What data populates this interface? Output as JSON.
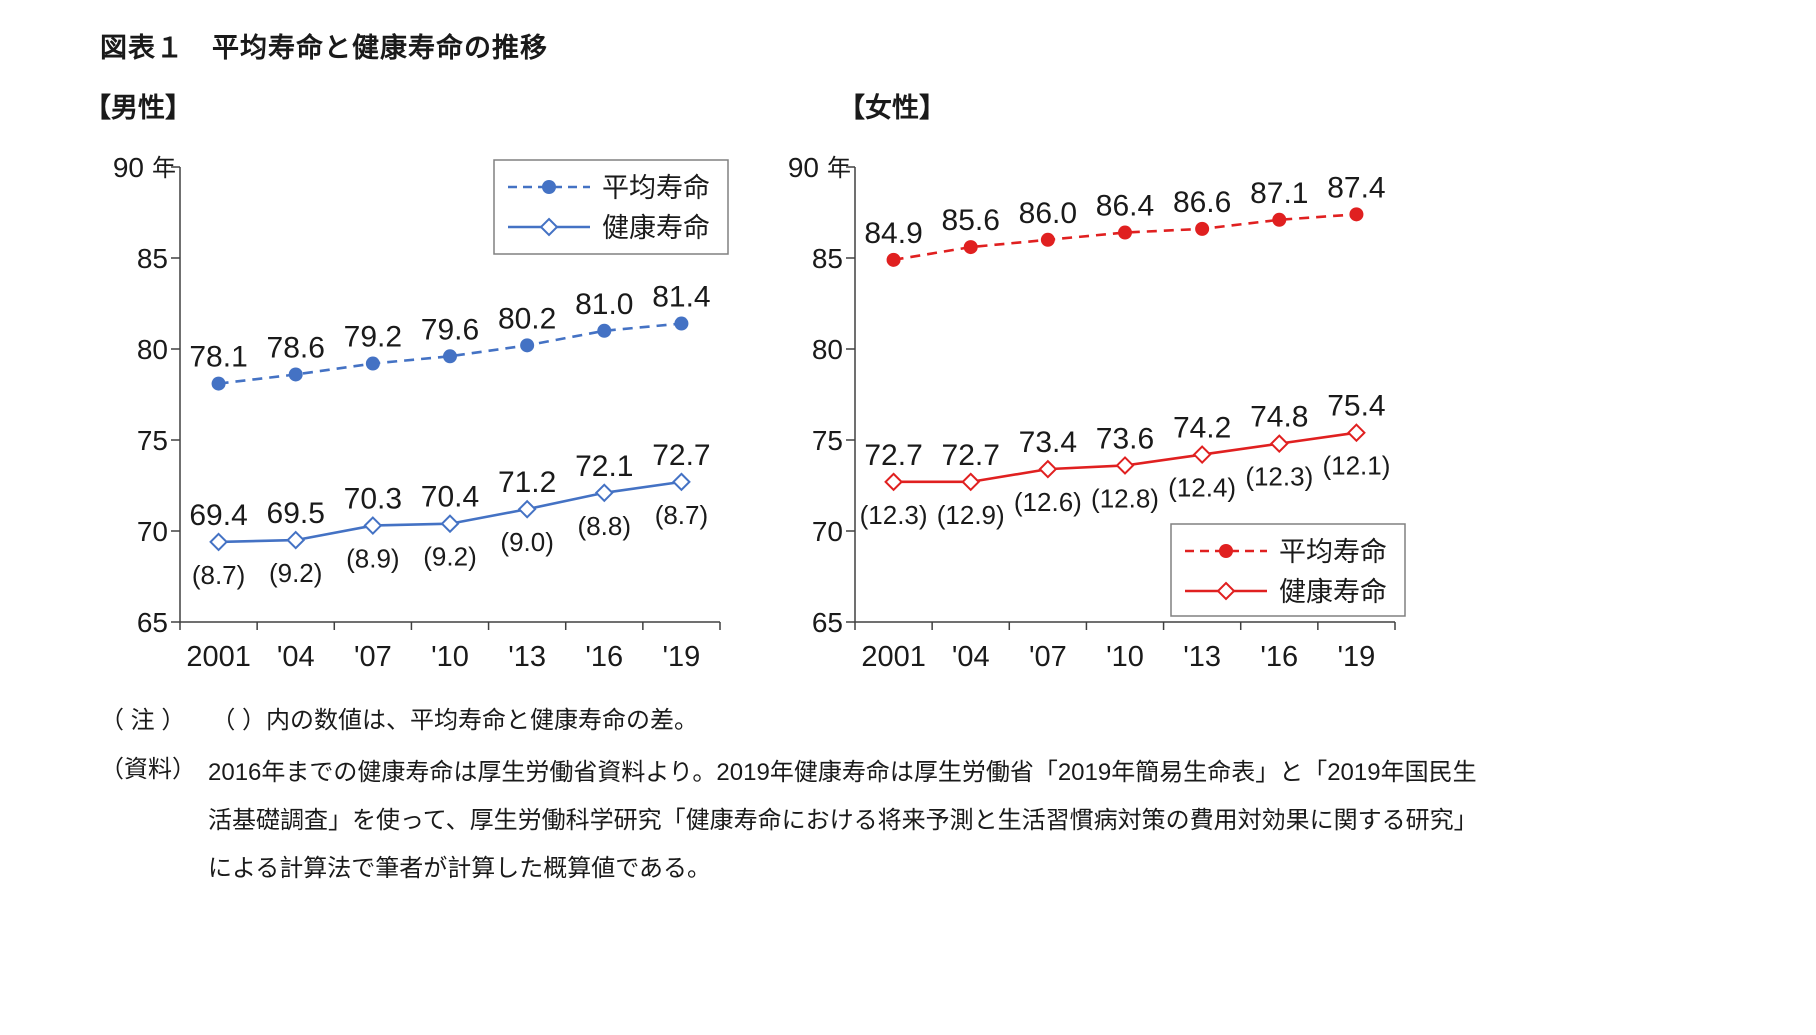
{
  "page": {
    "title": "図表１　平均寿命と健康寿命の推移"
  },
  "chart_data": [
    {
      "type": "line",
      "title": "【男性】",
      "categories": [
        "2001",
        "'04",
        "'07",
        "'10",
        "'13",
        "'16",
        "'19"
      ],
      "series": [
        {
          "name": "平均寿命",
          "values": [
            78.1,
            78.6,
            79.2,
            79.6,
            80.2,
            81.0,
            81.4
          ],
          "line_style": "dashed",
          "marker": "filled-circle",
          "color": "#4472c4"
        },
        {
          "name": "健康寿命",
          "values": [
            69.4,
            69.5,
            70.3,
            70.4,
            71.2,
            72.1,
            72.7
          ],
          "line_style": "solid",
          "marker": "open-diamond",
          "color": "#4472c4"
        }
      ],
      "gap_labels": [
        "(8.7)",
        "(9.2)",
        "(8.9)",
        "(9.2)",
        "(9.0)",
        "(8.8)",
        "(8.7)"
      ],
      "ylim": [
        65,
        90
      ],
      "yticks": [
        65,
        70,
        75,
        80,
        85,
        90
      ],
      "y_unit": "年",
      "grid": false,
      "legend_position": "top-right"
    },
    {
      "type": "line",
      "title": "【女性】",
      "categories": [
        "2001",
        "'04",
        "'07",
        "'10",
        "'13",
        "'16",
        "'19"
      ],
      "series": [
        {
          "name": "平均寿命",
          "values": [
            84.9,
            85.6,
            86.0,
            86.4,
            86.6,
            87.1,
            87.4
          ],
          "line_style": "dashed",
          "marker": "filled-circle",
          "color": "#e02020"
        },
        {
          "name": "健康寿命",
          "values": [
            72.7,
            72.7,
            73.4,
            73.6,
            74.2,
            74.8,
            75.4
          ],
          "line_style": "solid",
          "marker": "open-diamond",
          "color": "#e02020"
        }
      ],
      "gap_labels": [
        "(12.3)",
        "(12.9)",
        "(12.6)",
        "(12.8)",
        "(12.4)",
        "(12.3)",
        "(12.1)"
      ],
      "ylim": [
        65,
        90
      ],
      "yticks": [
        65,
        70,
        75,
        80,
        85,
        90
      ],
      "y_unit": "年",
      "grid": false,
      "legend_position": "bottom-right"
    }
  ],
  "notes": {
    "note_label": "（ 注 ）",
    "note_text": "（ ）内の数値は、平均寿命と健康寿命の差。",
    "source_label": "（資料）",
    "source_text": "2016年までの健康寿命は厚生労働省資料より。2019年健康寿命は厚生労働省「2019年簡易生命表」と「2019年国民生活基礎調査」を使って、厚生労働科学研究「健康寿命における将来予測と生活習慣病対策の費用対効果に関する研究」による計算法で筆者が計算した概算値である。"
  }
}
